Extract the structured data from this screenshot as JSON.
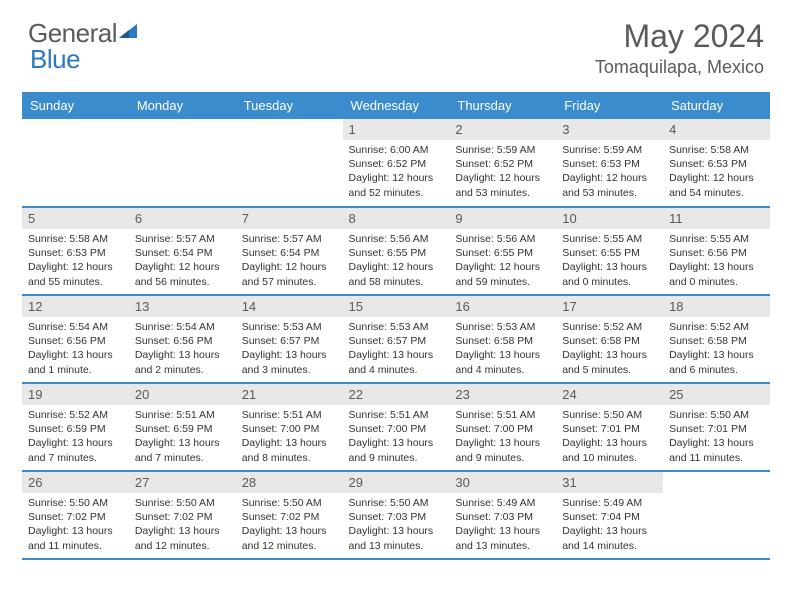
{
  "logo": {
    "text1": "General",
    "text2": "Blue"
  },
  "title": "May 2024",
  "location": "Tomaquilapa, Mexico",
  "colors": {
    "header_bg": "#3b8ccc",
    "daynum_bg": "#e8e8e8",
    "border": "#3b8ccc",
    "text_gray": "#5a5a5a",
    "logo_blue": "#2a7ac0"
  },
  "day_headers": [
    "Sunday",
    "Monday",
    "Tuesday",
    "Wednesday",
    "Thursday",
    "Friday",
    "Saturday"
  ],
  "weeks": [
    [
      {
        "empty": true
      },
      {
        "empty": true
      },
      {
        "empty": true
      },
      {
        "n": "1",
        "sr": "6:00 AM",
        "ss": "6:52 PM",
        "dl": "12 hours and 52 minutes."
      },
      {
        "n": "2",
        "sr": "5:59 AM",
        "ss": "6:52 PM",
        "dl": "12 hours and 53 minutes."
      },
      {
        "n": "3",
        "sr": "5:59 AM",
        "ss": "6:53 PM",
        "dl": "12 hours and 53 minutes."
      },
      {
        "n": "4",
        "sr": "5:58 AM",
        "ss": "6:53 PM",
        "dl": "12 hours and 54 minutes."
      }
    ],
    [
      {
        "n": "5",
        "sr": "5:58 AM",
        "ss": "6:53 PM",
        "dl": "12 hours and 55 minutes."
      },
      {
        "n": "6",
        "sr": "5:57 AM",
        "ss": "6:54 PM",
        "dl": "12 hours and 56 minutes."
      },
      {
        "n": "7",
        "sr": "5:57 AM",
        "ss": "6:54 PM",
        "dl": "12 hours and 57 minutes."
      },
      {
        "n": "8",
        "sr": "5:56 AM",
        "ss": "6:55 PM",
        "dl": "12 hours and 58 minutes."
      },
      {
        "n": "9",
        "sr": "5:56 AM",
        "ss": "6:55 PM",
        "dl": "12 hours and 59 minutes."
      },
      {
        "n": "10",
        "sr": "5:55 AM",
        "ss": "6:55 PM",
        "dl": "13 hours and 0 minutes."
      },
      {
        "n": "11",
        "sr": "5:55 AM",
        "ss": "6:56 PM",
        "dl": "13 hours and 0 minutes."
      }
    ],
    [
      {
        "n": "12",
        "sr": "5:54 AM",
        "ss": "6:56 PM",
        "dl": "13 hours and 1 minute."
      },
      {
        "n": "13",
        "sr": "5:54 AM",
        "ss": "6:56 PM",
        "dl": "13 hours and 2 minutes."
      },
      {
        "n": "14",
        "sr": "5:53 AM",
        "ss": "6:57 PM",
        "dl": "13 hours and 3 minutes."
      },
      {
        "n": "15",
        "sr": "5:53 AM",
        "ss": "6:57 PM",
        "dl": "13 hours and 4 minutes."
      },
      {
        "n": "16",
        "sr": "5:53 AM",
        "ss": "6:58 PM",
        "dl": "13 hours and 4 minutes."
      },
      {
        "n": "17",
        "sr": "5:52 AM",
        "ss": "6:58 PM",
        "dl": "13 hours and 5 minutes."
      },
      {
        "n": "18",
        "sr": "5:52 AM",
        "ss": "6:58 PM",
        "dl": "13 hours and 6 minutes."
      }
    ],
    [
      {
        "n": "19",
        "sr": "5:52 AM",
        "ss": "6:59 PM",
        "dl": "13 hours and 7 minutes."
      },
      {
        "n": "20",
        "sr": "5:51 AM",
        "ss": "6:59 PM",
        "dl": "13 hours and 7 minutes."
      },
      {
        "n": "21",
        "sr": "5:51 AM",
        "ss": "7:00 PM",
        "dl": "13 hours and 8 minutes."
      },
      {
        "n": "22",
        "sr": "5:51 AM",
        "ss": "7:00 PM",
        "dl": "13 hours and 9 minutes."
      },
      {
        "n": "23",
        "sr": "5:51 AM",
        "ss": "7:00 PM",
        "dl": "13 hours and 9 minutes."
      },
      {
        "n": "24",
        "sr": "5:50 AM",
        "ss": "7:01 PM",
        "dl": "13 hours and 10 minutes."
      },
      {
        "n": "25",
        "sr": "5:50 AM",
        "ss": "7:01 PM",
        "dl": "13 hours and 11 minutes."
      }
    ],
    [
      {
        "n": "26",
        "sr": "5:50 AM",
        "ss": "7:02 PM",
        "dl": "13 hours and 11 minutes."
      },
      {
        "n": "27",
        "sr": "5:50 AM",
        "ss": "7:02 PM",
        "dl": "13 hours and 12 minutes."
      },
      {
        "n": "28",
        "sr": "5:50 AM",
        "ss": "7:02 PM",
        "dl": "13 hours and 12 minutes."
      },
      {
        "n": "29",
        "sr": "5:50 AM",
        "ss": "7:03 PM",
        "dl": "13 hours and 13 minutes."
      },
      {
        "n": "30",
        "sr": "5:49 AM",
        "ss": "7:03 PM",
        "dl": "13 hours and 13 minutes."
      },
      {
        "n": "31",
        "sr": "5:49 AM",
        "ss": "7:04 PM",
        "dl": "13 hours and 14 minutes."
      },
      {
        "empty": true
      }
    ]
  ],
  "labels": {
    "sunrise": "Sunrise:",
    "sunset": "Sunset:",
    "daylight": "Daylight:"
  }
}
